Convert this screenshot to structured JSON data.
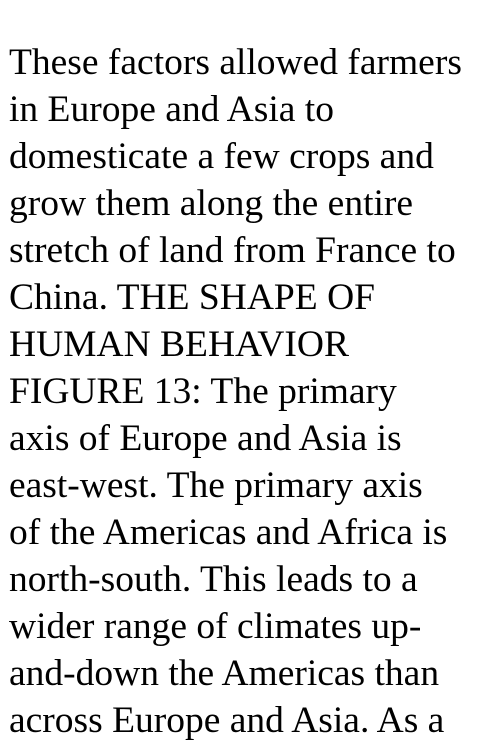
{
  "text_lines": [
    "These factors allowed farmers",
    "in Europe and Asia to",
    "domesticate a few crops and",
    "grow them along the entire",
    "stretch of land from France to",
    "China. THE SHAPE OF",
    "HUMAN BEHAVIOR",
    "FIGURE 13: The primary",
    "axis of Europe and Asia is",
    "east-west. The primary axis",
    "of the Americas and Africa is",
    "north-south. This leads to a",
    "wider range of climates up-",
    "and-down the Americas than",
    "across Europe and Asia. As a"
  ]
}
